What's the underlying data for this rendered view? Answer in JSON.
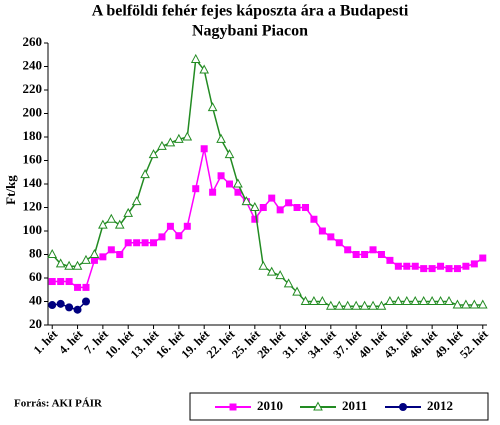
{
  "chart_data": {
    "type": "line",
    "title": [
      "A belföldi fehér fejes káposzta ára a Budapesti",
      "Nagybani Piacon"
    ],
    "y_label": "Ft/kg",
    "source": "Forrás: AKI PÁIR",
    "categories": [
      "1. hét",
      null,
      null,
      "4. hét",
      null,
      null,
      "7. hét",
      null,
      null,
      "10. hét",
      null,
      null,
      "13. hét",
      null,
      null,
      "16. hét",
      null,
      null,
      "19. hét",
      null,
      null,
      "22. hét",
      null,
      null,
      "25. hét",
      null,
      null,
      "28. hét",
      null,
      null,
      "31. hét",
      null,
      null,
      "34. hét",
      null,
      null,
      "37. hét",
      null,
      null,
      "40. hét",
      null,
      null,
      "43. hét",
      null,
      null,
      "46. hét",
      null,
      null,
      "49. hét",
      null,
      null,
      "52. hét"
    ],
    "ylim": [
      20,
      260
    ],
    "yticks": [
      20,
      40,
      60,
      80,
      100,
      120,
      140,
      160,
      180,
      200,
      220,
      240,
      260
    ],
    "grid": false,
    "legend": "bottom",
    "series": [
      {
        "name": "2010",
        "color": "#ff00ff",
        "marker": "square",
        "values": [
          57,
          57,
          57,
          52,
          52,
          75,
          78,
          84,
          80,
          90,
          90,
          90,
          90,
          95,
          104,
          96,
          104,
          136,
          170,
          133,
          147,
          140,
          133,
          125,
          110,
          120,
          128,
          118,
          124,
          120,
          120,
          110,
          100,
          95,
          90,
          84,
          80,
          80,
          84,
          80,
          75,
          70,
          70,
          70,
          68,
          68,
          70,
          68,
          68,
          70,
          72,
          77
        ]
      },
      {
        "name": "2011",
        "color": "#228b22",
        "marker": "triangle",
        "values": [
          80,
          72,
          70,
          70,
          75,
          80,
          105,
          110,
          105,
          115,
          125,
          148,
          165,
          172,
          175,
          178,
          180,
          246,
          237,
          205,
          178,
          165,
          140,
          125,
          120,
          70,
          65,
          62,
          55,
          48,
          40,
          40,
          40,
          36,
          36,
          36,
          36,
          36,
          36,
          36,
          40,
          40,
          40,
          40,
          40,
          40,
          40,
          40,
          37,
          37,
          37,
          37
        ]
      },
      {
        "name": "2012",
        "color": "#000080",
        "marker": "circle",
        "values": [
          37,
          38,
          35,
          33,
          40,
          null,
          null,
          null,
          null,
          null,
          null,
          null,
          null,
          null,
          null,
          null,
          null,
          null,
          null,
          null,
          null,
          null,
          null,
          null,
          null,
          null,
          null,
          null,
          null,
          null,
          null,
          null,
          null,
          null,
          null,
          null,
          null,
          null,
          null,
          null,
          null,
          null,
          null,
          null,
          null,
          null,
          null,
          null,
          null,
          null,
          null,
          null
        ]
      }
    ]
  }
}
